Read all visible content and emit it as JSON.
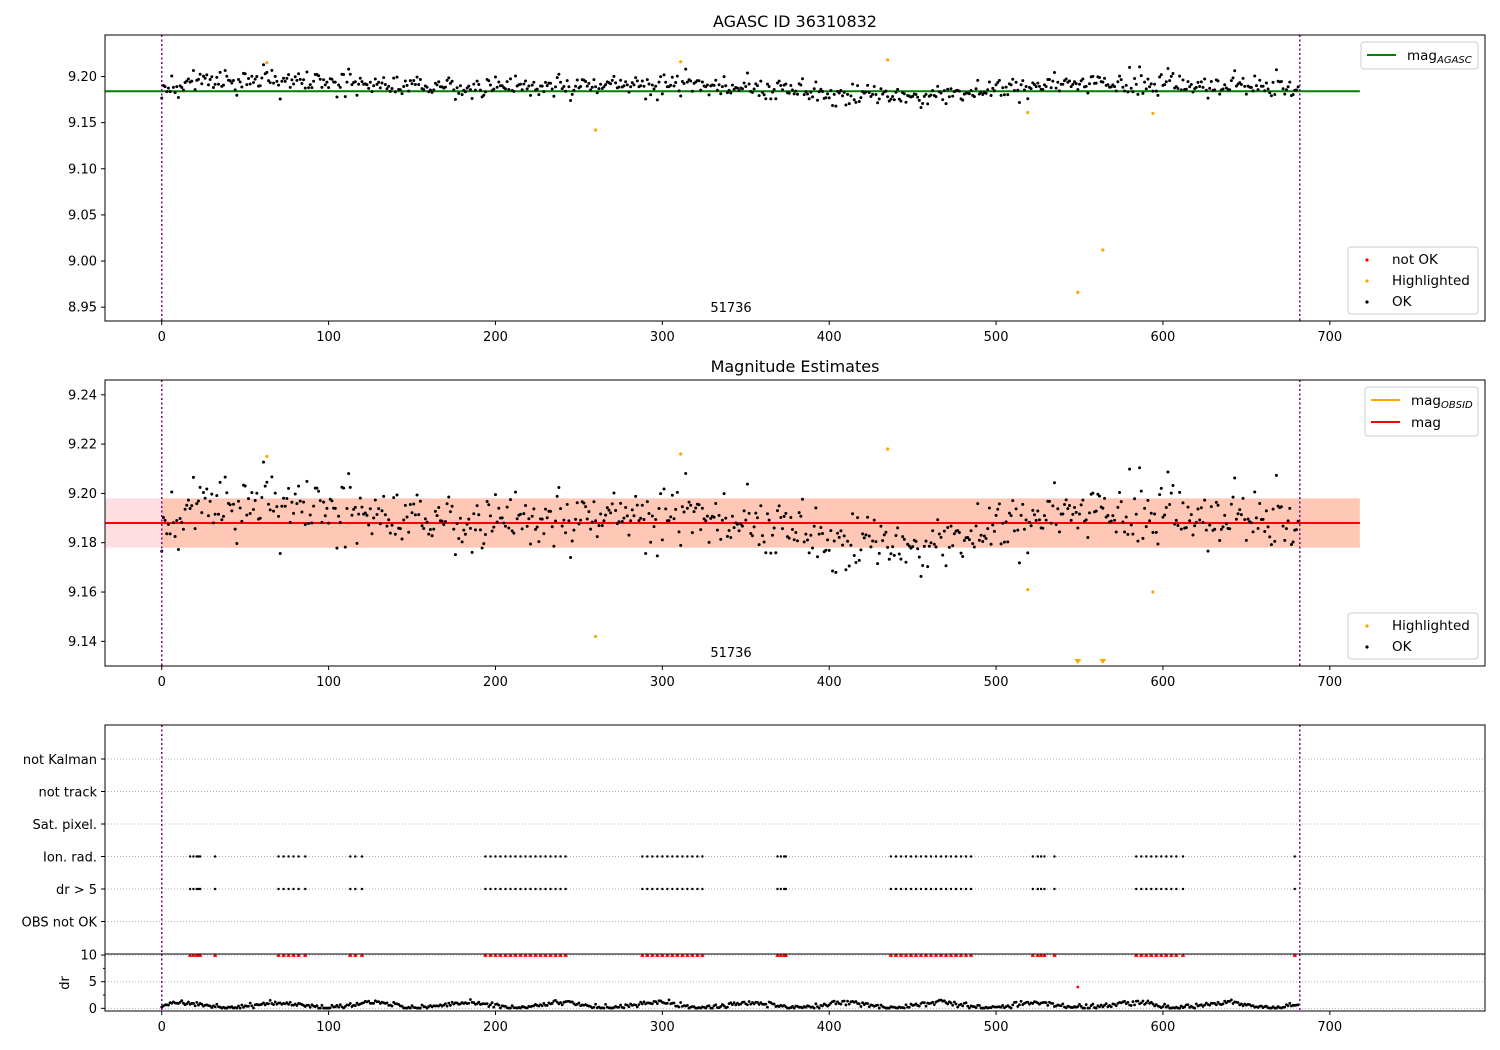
{
  "chart_data": [
    {
      "id": "top",
      "type": "scatter",
      "title": "AGASC ID 36310832",
      "annotation": "51736",
      "xlim": [
        -34,
        793
      ],
      "ylim": [
        8.935,
        9.245
      ],
      "xticks": [
        0,
        100,
        200,
        300,
        400,
        500,
        600,
        700
      ],
      "yticks": [
        8.95,
        9.0,
        9.05,
        9.1,
        9.15,
        9.2
      ],
      "ytick_labels": [
        "8.95",
        "9.00",
        "9.05",
        "9.10",
        "9.15",
        "9.20"
      ],
      "obs_bounds": [
        0,
        682
      ],
      "hline": {
        "name": "mag_AGASC",
        "value": 9.184,
        "x_range": [
          -34,
          718
        ],
        "color": "#008000"
      },
      "legend_top": [
        {
          "label": "mag",
          "sub": "AGASC",
          "color": "#008000",
          "kind": "line"
        }
      ],
      "legend_bottom": [
        {
          "label": "not OK",
          "color": "#ff0000",
          "kind": "dot"
        },
        {
          "label": "Highlighted",
          "color": "#ffa500",
          "kind": "dot"
        },
        {
          "label": "OK",
          "color": "#000000",
          "kind": "dot"
        }
      ],
      "ok_series": {
        "n": 682,
        "center": 9.188,
        "amplitude": 0.009,
        "noise": 0.009
      },
      "highlighted": [
        {
          "x": 63,
          "y": 9.215
        },
        {
          "x": 260,
          "y": 9.142
        },
        {
          "x": 311,
          "y": 9.216
        },
        {
          "x": 435,
          "y": 9.218
        },
        {
          "x": 519,
          "y": 9.161
        },
        {
          "x": 549,
          "y": 8.966
        },
        {
          "x": 564,
          "y": 9.012
        },
        {
          "x": 594,
          "y": 9.16
        }
      ],
      "not_ok": []
    },
    {
      "id": "middle",
      "type": "scatter",
      "title": "Magnitude Estimates",
      "annotation": "51736",
      "xlim": [
        -34,
        793
      ],
      "ylim": [
        9.13,
        9.246
      ],
      "xticks": [
        0,
        100,
        200,
        300,
        400,
        500,
        600,
        700
      ],
      "yticks": [
        9.14,
        9.16,
        9.18,
        9.2,
        9.22,
        9.24
      ],
      "ytick_labels": [
        "9.14",
        "9.16",
        "9.18",
        "9.20",
        "9.22",
        "9.24"
      ],
      "obs_bounds": [
        0,
        682
      ],
      "mag": {
        "value": 9.188,
        "x_range": [
          -34,
          718
        ],
        "color": "#ff0000"
      },
      "mag_band": {
        "low": 9.178,
        "high": 9.198,
        "color": "#ffb6c1"
      },
      "mag_obsid": {
        "value": 9.188,
        "low": 9.178,
        "high": 9.198,
        "x_range": [
          0,
          718
        ],
        "color": "#ffa500"
      },
      "legend_top": [
        {
          "label": "mag",
          "sub": "OBSID",
          "color": "#ffa500",
          "kind": "line"
        },
        {
          "label": "mag",
          "sub": "",
          "color": "#ff0000",
          "kind": "line"
        }
      ],
      "legend_bottom": [
        {
          "label": "Highlighted",
          "color": "#ffa500",
          "kind": "dot"
        },
        {
          "label": "OK",
          "color": "#000000",
          "kind": "dot"
        }
      ],
      "highlighted": [
        {
          "x": 63,
          "y": 9.215
        },
        {
          "x": 260,
          "y": 9.142
        },
        {
          "x": 311,
          "y": 9.216
        },
        {
          "x": 435,
          "y": 9.218
        },
        {
          "x": 519,
          "y": 9.161
        },
        {
          "x": 594,
          "y": 9.16
        }
      ],
      "below_axis_markers": [
        549,
        564
      ]
    },
    {
      "id": "flags",
      "type": "scatter",
      "xlim": [
        -34,
        793
      ],
      "obs_bounds": [
        0,
        682
      ],
      "categories": [
        "not Kalman",
        "not track",
        "Sat. pixel.",
        "Ion. rad.",
        "dr > 5",
        "OBS not OK"
      ],
      "flag_x": [
        17,
        19,
        21,
        22,
        23,
        32,
        70,
        73,
        76,
        79,
        82,
        86,
        113,
        116,
        120,
        194,
        197,
        200,
        203,
        206,
        209,
        212,
        215,
        218,
        221,
        224,
        227,
        230,
        233,
        236,
        239,
        242,
        288,
        291,
        294,
        297,
        300,
        303,
        306,
        309,
        312,
        315,
        318,
        321,
        324,
        369,
        371,
        373,
        374,
        437,
        440,
        443,
        446,
        449,
        452,
        455,
        458,
        461,
        464,
        467,
        470,
        473,
        476,
        479,
        482,
        485,
        522,
        525,
        527,
        529,
        535,
        584,
        587,
        590,
        593,
        596,
        599,
        602,
        605,
        608,
        612,
        679
      ],
      "flag_rows": [
        "Ion. rad.",
        "dr > 5"
      ]
    },
    {
      "id": "dr",
      "type": "scatter",
      "ylabel": "dr",
      "xlim": [
        -34,
        793
      ],
      "ylim": [
        -0.5,
        10.2
      ],
      "yticks": [
        0,
        5,
        10
      ],
      "ytick_labels": [
        "0",
        "5",
        "10"
      ],
      "xticks": [
        0,
        100,
        200,
        300,
        400,
        500,
        600,
        700
      ],
      "obs_bounds": [
        0,
        682
      ],
      "clipped_value": 10,
      "outliers": [
        {
          "x": 549,
          "y": 4.0
        }
      ]
    }
  ]
}
